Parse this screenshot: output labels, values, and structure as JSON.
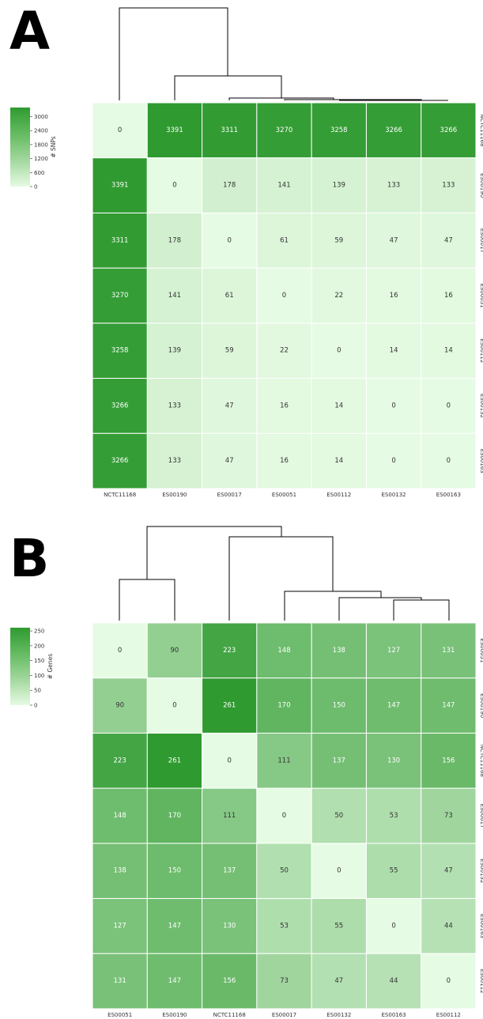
{
  "chart_data": [
    {
      "panel": "A",
      "type": "heatmap",
      "title": "",
      "colorbar_label": "# SNPs",
      "colorbar_ticks": [
        0,
        600,
        1200,
        1800,
        2400,
        3000
      ],
      "vmin": 0,
      "vmax": 3391,
      "x_labels": [
        "NCTC11168",
        "ES00190",
        "ES00017",
        "ES00051",
        "ES00112",
        "ES00132",
        "ES00163"
      ],
      "y_labels": [
        "NCTC11168",
        "ES00190",
        "ES00017",
        "ES00051",
        "ES00112",
        "ES00132",
        "ES00163"
      ],
      "values": [
        [
          0,
          3391,
          3311,
          3270,
          3258,
          3266,
          3266
        ],
        [
          3391,
          0,
          178,
          141,
          139,
          133,
          133
        ],
        [
          3311,
          178,
          0,
          61,
          59,
          47,
          47
        ],
        [
          3270,
          141,
          61,
          0,
          22,
          16,
          16
        ],
        [
          3258,
          139,
          59,
          22,
          0,
          14,
          14
        ],
        [
          3266,
          133,
          47,
          16,
          14,
          0,
          0
        ],
        [
          3266,
          133,
          47,
          16,
          14,
          0,
          0
        ]
      ],
      "colors": {
        "low": "#e6fbe3",
        "high": "#2f9a30",
        "text_dark": "#333333",
        "text_light": "#ffffff"
      }
    },
    {
      "panel": "B",
      "type": "heatmap",
      "title": "",
      "colorbar_label": "# Genes",
      "colorbar_ticks": [
        0,
        50,
        100,
        150,
        200,
        250
      ],
      "vmin": 0,
      "vmax": 261,
      "x_labels": [
        "ES00051",
        "ES00190",
        "NCTC11168",
        "ES00017",
        "ES00132",
        "ES00163",
        "ES00112"
      ],
      "y_labels": [
        "ES00051",
        "ES00190",
        "NCTC11168",
        "ES00017",
        "ES00132",
        "ES00163",
        "ES00112"
      ],
      "values": [
        [
          0,
          90,
          223,
          148,
          138,
          127,
          131
        ],
        [
          90,
          0,
          261,
          170,
          150,
          147,
          147
        ],
        [
          223,
          261,
          0,
          111,
          137,
          130,
          156
        ],
        [
          148,
          170,
          111,
          0,
          50,
          53,
          73
        ],
        [
          138,
          150,
          137,
          50,
          0,
          55,
          47
        ],
        [
          127,
          147,
          130,
          53,
          55,
          0,
          44
        ],
        [
          131,
          147,
          156,
          73,
          47,
          44,
          0
        ]
      ],
      "colors": {
        "low": "#e6fbe3",
        "high": "#2f9a30",
        "text_dark": "#333333",
        "text_light": "#ffffff"
      }
    }
  ]
}
